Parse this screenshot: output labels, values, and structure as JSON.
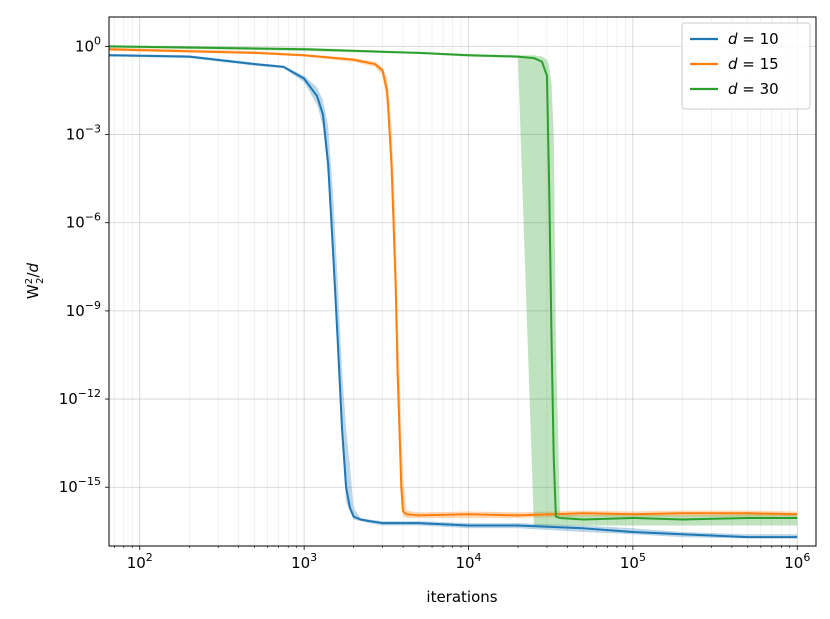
{
  "chart_data": {
    "type": "line",
    "title": "",
    "xlabel": "iterations",
    "ylabel": "W²₂/d",
    "xscale": "log",
    "yscale": "log",
    "xlim": [
      65,
      1300000
    ],
    "ylim": [
      1e-17,
      10
    ],
    "grid": true,
    "legend_position": "top-right",
    "x_ticks": [
      {
        "value": 100,
        "base": "10",
        "exp": "2"
      },
      {
        "value": 1000,
        "base": "10",
        "exp": "3"
      },
      {
        "value": 10000,
        "base": "10",
        "exp": "4"
      },
      {
        "value": 100000,
        "base": "10",
        "exp": "5"
      },
      {
        "value": 1000000,
        "base": "10",
        "exp": "6"
      }
    ],
    "y_ticks": [
      {
        "value": 1,
        "base": "10",
        "exp": "0"
      },
      {
        "value": 0.001,
        "base": "10",
        "exp": "−3"
      },
      {
        "value": 1e-06,
        "base": "10",
        "exp": "−6"
      },
      {
        "value": 1e-09,
        "base": "10",
        "exp": "−9"
      },
      {
        "value": 1e-12,
        "base": "10",
        "exp": "−12"
      },
      {
        "value": 1e-15,
        "base": "10",
        "exp": "−15"
      }
    ],
    "series": [
      {
        "name": "d = 10",
        "label_var": "d",
        "label_value": "10",
        "color": "#1f77b4",
        "x": [
          65,
          200,
          500,
          750,
          1000,
          1200,
          1300,
          1400,
          1500,
          1600,
          1700,
          1800,
          1900,
          2000,
          2200,
          2500,
          3000,
          5000,
          10000,
          20000,
          50000,
          100000,
          200000,
          500000,
          1000000
        ],
        "y": [
          0.5,
          0.45,
          0.25,
          0.2,
          0.08,
          0.02,
          0.005,
          0.0001,
          1e-07,
          1e-10,
          1e-13,
          1e-15,
          2e-16,
          1e-16,
          8e-17,
          7e-17,
          6e-17,
          6e-17,
          5e-17,
          5e-17,
          4e-17,
          3e-17,
          2.5e-17,
          2e-17,
          2e-17
        ],
        "band_lower": [
          0.45,
          0.4,
          0.22,
          0.18,
          0.06,
          0.01,
          0.002,
          3e-05,
          3e-08,
          3e-11,
          3e-14,
          3e-16,
          1.5e-16,
          8e-17,
          7e-17,
          6e-17,
          5e-17,
          5e-17,
          4e-17,
          4e-17,
          3e-17,
          2.5e-17,
          2e-17,
          1.8e-17,
          1.8e-17
        ],
        "band_upper": [
          0.55,
          0.5,
          0.28,
          0.22,
          0.1,
          0.04,
          0.015,
          0.002,
          1e-05,
          1e-08,
          1e-11,
          1e-13,
          5e-15,
          2e-16,
          9e-17,
          8e-17,
          7e-17,
          7e-17,
          6e-17,
          6e-17,
          5e-17,
          4e-17,
          3e-17,
          2.5e-17,
          2.5e-17
        ]
      },
      {
        "name": "d = 15",
        "label_var": "d",
        "label_value": "15",
        "color": "#ff7f0e",
        "x": [
          65,
          500,
          1000,
          2000,
          2700,
          3000,
          3200,
          3400,
          3600,
          3700,
          3800,
          3900,
          4000,
          4200,
          5000,
          10000,
          20000,
          50000,
          100000,
          200000,
          500000,
          1000000
        ],
        "y": [
          0.8,
          0.6,
          0.5,
          0.35,
          0.25,
          0.15,
          0.03,
          0.0001,
          1e-08,
          1e-11,
          1e-13,
          1e-15,
          1.5e-16,
          1.2e-16,
          1.1e-16,
          1.2e-16,
          1.1e-16,
          1.3e-16,
          1.2e-16,
          1.3e-16,
          1.3e-16,
          1.2e-16
        ],
        "band_lower": [
          0.7,
          0.55,
          0.45,
          0.3,
          0.2,
          0.1,
          0.01,
          2e-05,
          1e-09,
          1e-12,
          1e-14,
          2e-16,
          1e-16,
          9e-17,
          9e-17,
          9e-17,
          9e-17,
          1e-16,
          1e-16,
          1e-16,
          1e-16,
          1e-16
        ],
        "band_upper": [
          0.9,
          0.7,
          0.55,
          0.4,
          0.3,
          0.2,
          0.08,
          0.002,
          1e-06,
          1e-09,
          1e-11,
          1e-13,
          2e-15,
          1.6e-16,
          1.4e-16,
          1.5e-16,
          1.4e-16,
          1.6e-16,
          1.5e-16,
          1.6e-16,
          1.6e-16,
          1.5e-16
        ]
      },
      {
        "name": "d = 30",
        "label_var": "d",
        "label_value": "30",
        "color": "#2ca02c",
        "x": [
          65,
          1000,
          5000,
          10000,
          20000,
          25000,
          28000,
          30000,
          31000,
          32000,
          33000,
          34000,
          36000,
          50000,
          100000,
          200000,
          500000,
          1000000
        ],
        "y": [
          1.0,
          0.8,
          0.6,
          0.5,
          0.45,
          0.4,
          0.3,
          0.1,
          1e-05,
          1e-10,
          1e-14,
          1e-16,
          9e-17,
          8e-17,
          9e-17,
          8e-17,
          9e-17,
          9e-17
        ],
        "band_lower": [
          0.9,
          0.7,
          0.55,
          0.45,
          0.4,
          5e-17,
          5e-17,
          5e-17,
          5e-17,
          5e-17,
          5e-17,
          5e-17,
          5e-17,
          5e-17,
          5e-17,
          5e-17,
          5e-17,
          5e-17
        ],
        "band_upper": [
          1.1,
          0.9,
          0.65,
          0.55,
          0.5,
          0.5,
          0.45,
          0.35,
          0.2,
          0.05,
          0.001,
          1e-10,
          1.2e-16,
          1.1e-16,
          1.2e-16,
          1.1e-16,
          1.2e-16,
          1.2e-16
        ]
      }
    ]
  }
}
